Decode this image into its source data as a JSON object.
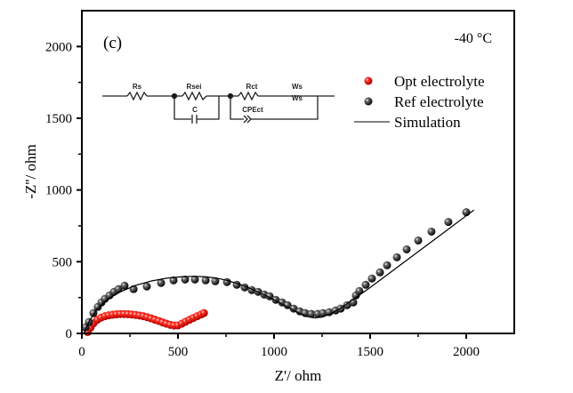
{
  "panel_label": "(c)",
  "temperature_label": "-40 °C",
  "circuit": {
    "labels": {
      "rs": "Rs",
      "rsei": "Rsei",
      "c": "C",
      "rct": "Rct",
      "ws": "Ws",
      "ws_symbol": "Ws",
      "cpect": "CPEct"
    }
  },
  "chart_data": {
    "type": "scatter",
    "title": "",
    "xlabel": "Z'/ ohm",
    "ylabel": "-Z''/ ohm",
    "xlim": [
      0,
      2250
    ],
    "ylim": [
      0,
      2250
    ],
    "xticks": [
      0,
      500,
      1000,
      1500,
      2000
    ],
    "yticks": [
      0,
      500,
      1000,
      1500,
      2000
    ],
    "xtick_labels": [
      "0",
      "500",
      "1000",
      "1500",
      "2000"
    ],
    "ytick_labels": [
      "0",
      "500",
      "1000",
      "1500",
      "2000"
    ],
    "grid": false,
    "legend_position": "top-right",
    "series": [
      {
        "name": "Opt electrolyte",
        "kind": "points",
        "color": "#e8100c",
        "x": [
          30,
          45,
          60,
          80,
          100,
          120,
          140,
          160,
          180,
          200,
          220,
          240,
          260,
          280,
          300,
          320,
          340,
          360,
          380,
          400,
          420,
          440,
          460,
          480,
          500,
          520,
          540,
          560,
          580,
          600,
          620,
          635
        ],
        "y": [
          10,
          40,
          70,
          95,
          110,
          120,
          126,
          130,
          133,
          135,
          135,
          134,
          132,
          129,
          125,
          120,
          113,
          105,
          96,
          87,
          77,
          68,
          60,
          55,
          56,
          68,
          82,
          95,
          108,
          120,
          132,
          142
        ]
      },
      {
        "name": "Ref electrolyte",
        "kind": "points",
        "color": "#1a1a1a",
        "x": [
          19,
          37,
          60,
          83,
          102,
          120,
          144,
          167,
          190,
          222,
          269,
          338,
          412,
          477,
          537,
          588,
          644,
          694,
          755,
          806,
          847,
          884,
          917,
          949,
          977,
          1009,
          1042,
          1070,
          1102,
          1134,
          1162,
          1194,
          1227,
          1255,
          1287,
          1320,
          1347,
          1380,
          1412,
          1426,
          1444,
          1477,
          1509,
          1551,
          1588,
          1639,
          1690,
          1750,
          1819,
          1907,
          2000
        ],
        "y": [
          43,
          80,
          142,
          185,
          216,
          241,
          265,
          290,
          309,
          333,
          309,
          327,
          352,
          370,
          376,
          376,
          370,
          364,
          358,
          339,
          321,
          302,
          290,
          271,
          259,
          234,
          216,
          197,
          173,
          154,
          142,
          136,
          136,
          142,
          148,
          160,
          173,
          197,
          216,
          265,
          296,
          339,
          383,
          426,
          475,
          531,
          586,
          648,
          710,
          777,
          845
        ]
      },
      {
        "name": "Simulation",
        "kind": "line",
        "color": "#000000",
        "x": [
          10,
          40,
          80,
          130,
          200,
          280,
          360,
          440,
          520,
          580,
          640,
          700,
          760,
          820,
          880,
          940,
          1000,
          1060,
          1120,
          1170,
          1210,
          1250,
          1300,
          1360,
          1420,
          1500,
          1600,
          1700,
          1800,
          1900,
          2000,
          2040
        ],
        "y": [
          0,
          90,
          170,
          235,
          290,
          335,
          365,
          385,
          395,
          398,
          395,
          386,
          368,
          343,
          311,
          275,
          235,
          192,
          148,
          118,
          108,
          114,
          140,
          188,
          245,
          320,
          420,
          520,
          620,
          720,
          820,
          860
        ]
      }
    ]
  }
}
